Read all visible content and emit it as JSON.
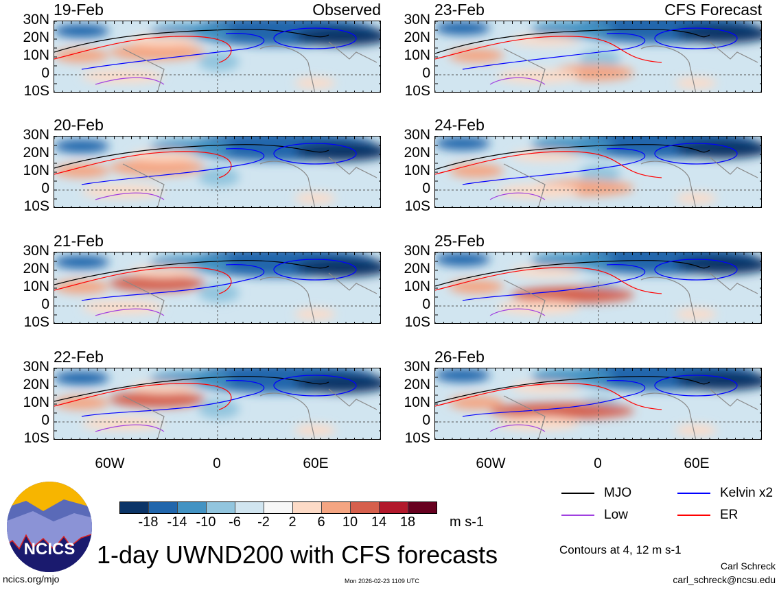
{
  "panels_left": [
    {
      "date": "19-Feb",
      "title": "Observed"
    },
    {
      "date": "20-Feb",
      "title": ""
    },
    {
      "date": "21-Feb",
      "title": ""
    },
    {
      "date": "22-Feb",
      "title": ""
    }
  ],
  "panels_right": [
    {
      "date": "23-Feb",
      "title": "CFS Forecast"
    },
    {
      "date": "24-Feb",
      "title": ""
    },
    {
      "date": "25-Feb",
      "title": ""
    },
    {
      "date": "26-Feb",
      "title": ""
    }
  ],
  "lat_labels": [
    "30N",
    "20N",
    "10N",
    "0",
    "10S"
  ],
  "lon_labels": [
    "60W",
    "0",
    "60E"
  ],
  "colorbar": {
    "colors": [
      "#0b3467",
      "#2166ac",
      "#4393c3",
      "#92c5de",
      "#d1e5f0",
      "#f7f7f7",
      "#fddbc7",
      "#f4a582",
      "#d6604d",
      "#b2182b",
      "#67001f"
    ],
    "ticks": [
      "-18",
      "-14",
      "-10",
      "-6",
      "-2",
      "2",
      "6",
      "10",
      "14",
      "18"
    ],
    "units": "m s-1"
  },
  "legend": [
    {
      "label": "MJO",
      "color": "#000000"
    },
    {
      "label": "Kelvin x2",
      "color": "#0000ff"
    },
    {
      "label": "Low",
      "color": "#a040e0"
    },
    {
      "label": "ER",
      "color": "#ff0000"
    }
  ],
  "contour_note": "Contours at 4, 12 m s-1",
  "title": "1-day UWND200 with CFS forecasts",
  "logo_text": "NCICS",
  "footer": {
    "url": "ncics.org/mjo",
    "timestamp": "Mon 2026-02-23 1109 UTC",
    "author": "Carl Schreck",
    "email": "carl_schreck@ncsu.edu"
  }
}
